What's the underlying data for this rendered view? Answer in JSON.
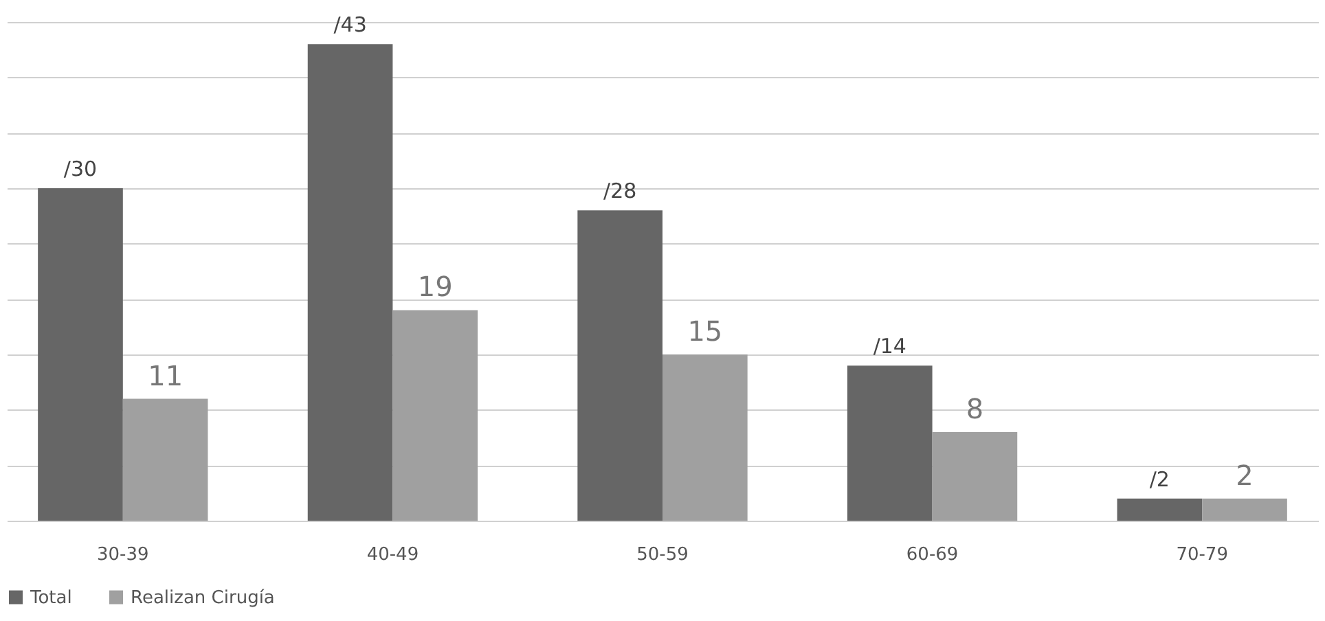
{
  "chart_data": {
    "type": "bar",
    "categories": [
      "30-39",
      "40-49",
      "50-59",
      "60-69",
      "70-79"
    ],
    "series": [
      {
        "name": "Total",
        "color": "#666666",
        "values": [
          30,
          43,
          28,
          14,
          2
        ],
        "value_labels": [
          "/30",
          "/43",
          "/28",
          "/14",
          "/2"
        ]
      },
      {
        "name": "Realizan Cirugía",
        "color": "#a0a0a0",
        "values": [
          11,
          19,
          15,
          8,
          2
        ],
        "value_labels": [
          "11",
          "19",
          "15",
          "8",
          "2"
        ]
      }
    ],
    "tick_labels": "x",
    "grid": "y",
    "legend": "bottom"
  }
}
